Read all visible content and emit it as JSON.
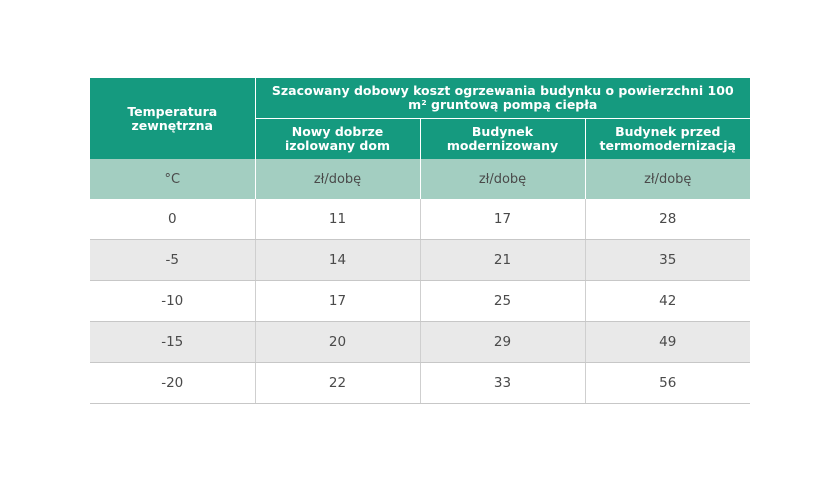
{
  "table": {
    "header": {
      "temperature": "Temperatura zewnętrzna",
      "group_title": "Szacowany dobowy koszt ogrzewania budynku o powierzchni 100 m² gruntową pompą ciepła",
      "columns": [
        "Nowy dobrze izolowany dom",
        "Budynek modernizowany",
        "Budynek przed termomodernizacją"
      ]
    },
    "units": [
      "°C",
      "zł/dobę",
      "zł/dobę",
      "zł/dobę"
    ],
    "rows": [
      [
        "0",
        "11",
        "17",
        "28"
      ],
      [
        "-5",
        "14",
        "21",
        "35"
      ],
      [
        "-10",
        "17",
        "25",
        "42"
      ],
      [
        "-15",
        "20",
        "29",
        "49"
      ],
      [
        "-20",
        "22",
        "33",
        "56"
      ]
    ]
  },
  "colors": {
    "header_bg": "#159a7f",
    "units_bg": "#a3cec1",
    "alt_row_bg": "#e9e9e9"
  }
}
